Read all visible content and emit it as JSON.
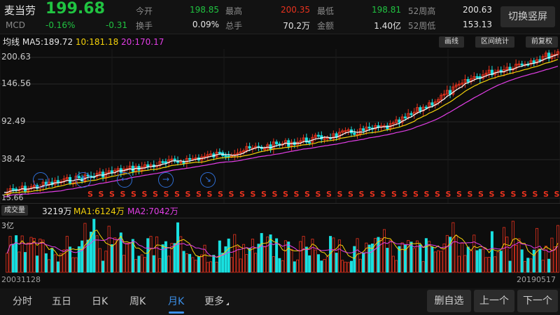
{
  "header": {
    "stock_name": "麦当劳",
    "ticker": "MCD",
    "price": "199.68",
    "change_pct": "-0.16%",
    "change_abs": "-0.31",
    "open_label": "今开",
    "open_value": "198.85",
    "turnover_label": "换手",
    "turnover_value": "0.09%",
    "high_label": "最高",
    "high_value": "200.35",
    "volume_label": "总手",
    "volume_value": "70.2万",
    "low_label": "最低",
    "low_value": "198.81",
    "amount_label": "金额",
    "amount_value": "1.40亿",
    "week52_high_label": "52周高",
    "week52_high_value": "200.63",
    "week52_low_label": "52周低",
    "week52_low_value": "153.13",
    "switch_button": "切换竖屏"
  },
  "ma_bar": {
    "prefix": "均线",
    "ma5": "MA5:189.72",
    "ma10": "10:181.18",
    "ma20": "20:170.17"
  },
  "tools": {
    "draw": "画线",
    "range_stats": "区间统计",
    "adjust": "前复权"
  },
  "price_axis": {
    "top": "200.63",
    "l2": "146.56",
    "l3": "92.49",
    "l4": "38.42",
    "bottom": "15.66"
  },
  "volume_bar": {
    "tag": "成交量",
    "current": "3219万",
    "ma1": "MA1:6124万",
    "ma2": "MA2:7042万",
    "axis_top": "3亿"
  },
  "date_range": {
    "start": "20031128",
    "end": "20190517"
  },
  "nav": {
    "tabs": [
      "分时",
      "五日",
      "日K",
      "周K",
      "月K",
      "更多"
    ],
    "active_tab": "月K",
    "favorite_button": "删自选",
    "prev_button": "上一个",
    "next_button": "下一个"
  },
  "signal_marker": "S",
  "colors": {
    "up": "#e8321e",
    "down": "#20c341",
    "ma5": "#ffffff",
    "ma10": "#f5d20a",
    "ma20": "#e23ee6",
    "volume_down": "#19e0e0",
    "accent": "#3b8fe8"
  },
  "icons": [
    "minus-circle-icon",
    "arrow-up-circle-icon",
    "arrow-left-circle-icon",
    "arrow-right-circle-icon",
    "shrink-circle-icon"
  ]
}
